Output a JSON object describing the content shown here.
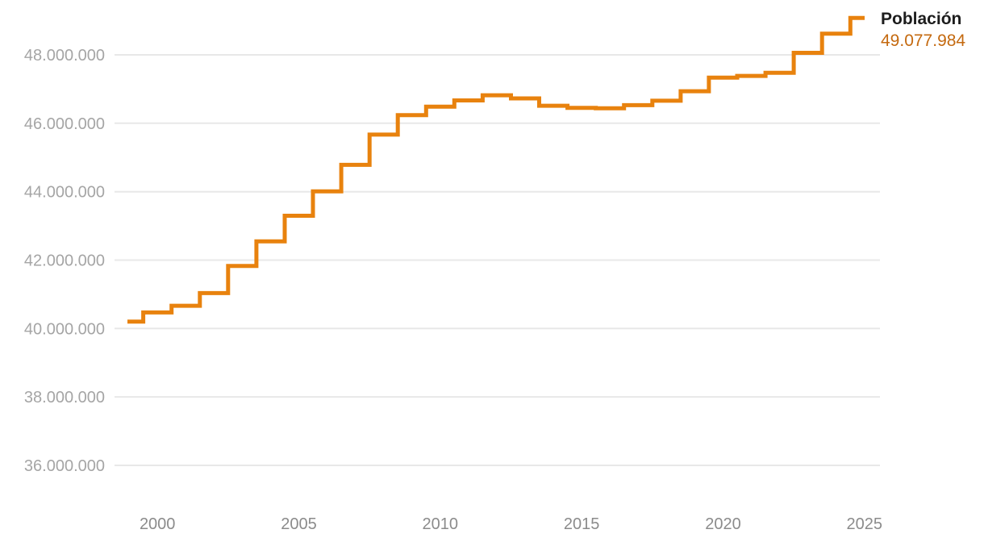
{
  "page": {
    "background": "#ffffff"
  },
  "legend": {
    "series_label": "Población",
    "latest_value": "49.077.984"
  },
  "colors": {
    "line": "#e8820e",
    "value_text": "#c4690f",
    "grid": "#e8e8e8",
    "y_label": "#a5a5a5",
    "x_label": "#8b8b8b",
    "legend_label": "#1d1d1d"
  },
  "chart_data": {
    "type": "line",
    "step": "center",
    "title": "",
    "xlabel": "",
    "ylabel": "",
    "grid": "horizontal",
    "legend_position": "top-right",
    "xlim": [
      1999,
      2025
    ],
    "ylim": [
      36000000,
      48000000
    ],
    "series": [
      {
        "name": "Población",
        "x": [
          1999,
          2000,
          2001,
          2002,
          2003,
          2004,
          2005,
          2006,
          2007,
          2008,
          2009,
          2010,
          2011,
          2012,
          2013,
          2014,
          2015,
          2016,
          2017,
          2018,
          2019,
          2020,
          2021,
          2022,
          2023,
          2024,
          2025
        ],
        "values": [
          40202160,
          40470182,
          40665545,
          41035271,
          41827836,
          42547454,
          43296335,
          44009969,
          44784666,
          45668938,
          46239271,
          46486619,
          46667174,
          46818216,
          46727890,
          46512199,
          46449565,
          46440099,
          46528024,
          46658447,
          46937060,
          47332614,
          47385107,
          47475420,
          48059777,
          48619695,
          49077984
        ]
      }
    ],
    "x_ticks": [
      {
        "value": 2000,
        "label": "2000"
      },
      {
        "value": 2005,
        "label": "2005"
      },
      {
        "value": 2010,
        "label": "2010"
      },
      {
        "value": 2015,
        "label": "2015"
      },
      {
        "value": 2020,
        "label": "2020"
      },
      {
        "value": 2025,
        "label": "2025"
      }
    ],
    "y_ticks": [
      {
        "value": 48000000,
        "label": "48.000.000"
      },
      {
        "value": 46000000,
        "label": "46.000.000"
      },
      {
        "value": 44000000,
        "label": "44.000.000"
      },
      {
        "value": 42000000,
        "label": "42.000.000"
      },
      {
        "value": 40000000,
        "label": "40.000.000"
      },
      {
        "value": 38000000,
        "label": "38.000.000"
      },
      {
        "value": 36000000,
        "label": "36.000.000"
      }
    ]
  }
}
